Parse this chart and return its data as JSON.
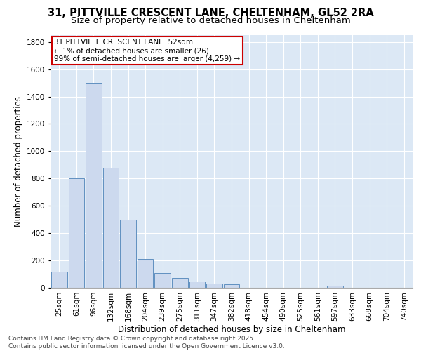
{
  "title_line1": "31, PITTVILLE CRESCENT LANE, CHELTENHAM, GL52 2RA",
  "title_line2": "Size of property relative to detached houses in Cheltenham",
  "xlabel": "Distribution of detached houses by size in Cheltenham",
  "ylabel": "Number of detached properties",
  "bar_labels": [
    "25sqm",
    "61sqm",
    "96sqm",
    "132sqm",
    "168sqm",
    "204sqm",
    "239sqm",
    "275sqm",
    "311sqm",
    "347sqm",
    "382sqm",
    "418sqm",
    "454sqm",
    "490sqm",
    "525sqm",
    "561sqm",
    "597sqm",
    "633sqm",
    "668sqm",
    "704sqm",
    "740sqm"
  ],
  "bar_values": [
    120,
    800,
    1500,
    880,
    500,
    210,
    110,
    70,
    45,
    30,
    25,
    0,
    0,
    0,
    0,
    0,
    15,
    0,
    0,
    0,
    0
  ],
  "bar_color": "#ccd9ee",
  "bar_edge_color": "#6090c0",
  "annotation_text": "31 PITTVILLE CRESCENT LANE: 52sqm\n← 1% of detached houses are smaller (26)\n99% of semi-detached houses are larger (4,259) →",
  "annotation_box_color": "#ffffff",
  "annotation_box_edge_color": "#cc0000",
  "ylim": [
    0,
    1850
  ],
  "yticks": [
    0,
    200,
    400,
    600,
    800,
    1000,
    1200,
    1400,
    1600,
    1800
  ],
  "background_color": "#dce8f5",
  "footer_line1": "Contains HM Land Registry data © Crown copyright and database right 2025.",
  "footer_line2": "Contains public sector information licensed under the Open Government Licence v3.0.",
  "title_fontsize": 10.5,
  "subtitle_fontsize": 9.5,
  "axis_label_fontsize": 8.5,
  "tick_fontsize": 7.5,
  "annotation_fontsize": 7.5,
  "footer_fontsize": 6.5
}
